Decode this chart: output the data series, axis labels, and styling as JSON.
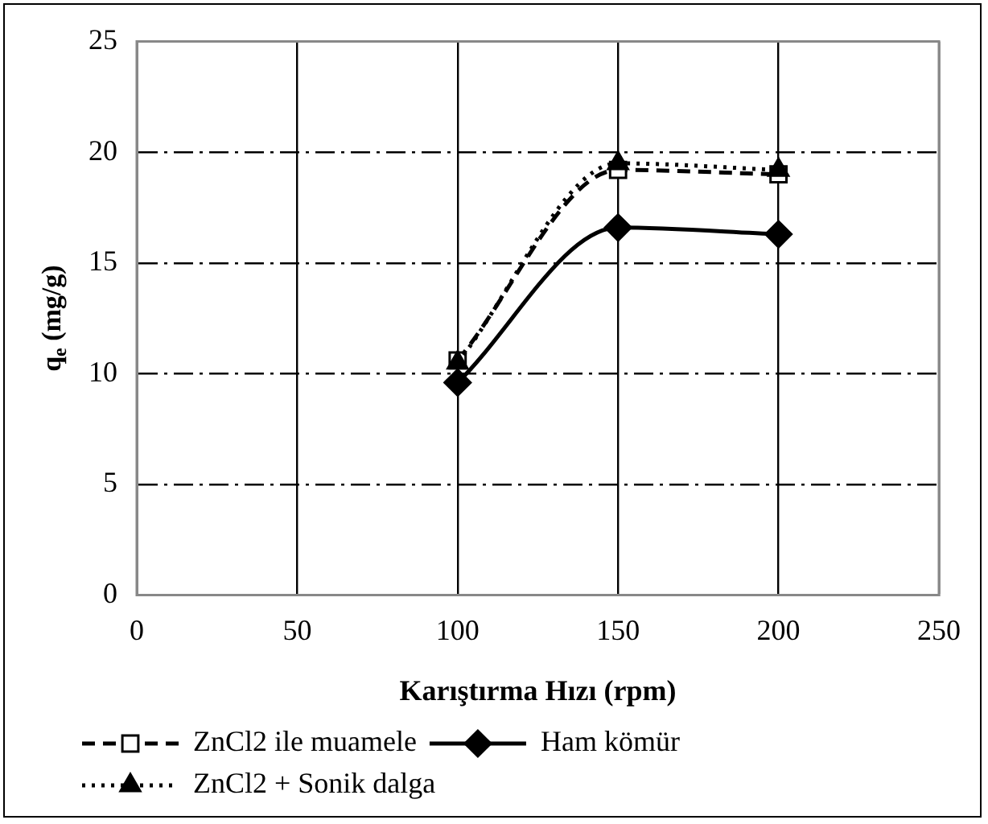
{
  "chart_data": {
    "type": "line",
    "xlabel": "Karıştırma Hızı (rpm)",
    "ylabel": "q$_{e}$ (mg/g)",
    "x": [
      100,
      150,
      200
    ],
    "series": [
      {
        "name": "ZnCl2 ile muamele",
        "color": "#000000",
        "values": [
          10.6,
          19.2,
          19.0
        ],
        "marker": "square",
        "line_style": "dashed"
      },
      {
        "name": "Ham kömür",
        "color": "#000000",
        "values": [
          9.6,
          16.6,
          16.3
        ],
        "marker": "diamond",
        "line_style": "solid"
      },
      {
        "name": "ZnCl2 + Sonik dalga",
        "color": "#000000",
        "values": [
          10.5,
          19.5,
          19.2
        ],
        "marker": "triangle",
        "line_style": "dotted"
      }
    ],
    "xlim": [
      0,
      250
    ],
    "xticks": [
      0,
      50,
      100,
      150,
      200,
      250
    ],
    "ylim": [
      0,
      25
    ],
    "yticks": [
      0,
      5,
      10,
      15,
      20,
      25
    ],
    "grid": true,
    "legend": "bottom"
  }
}
